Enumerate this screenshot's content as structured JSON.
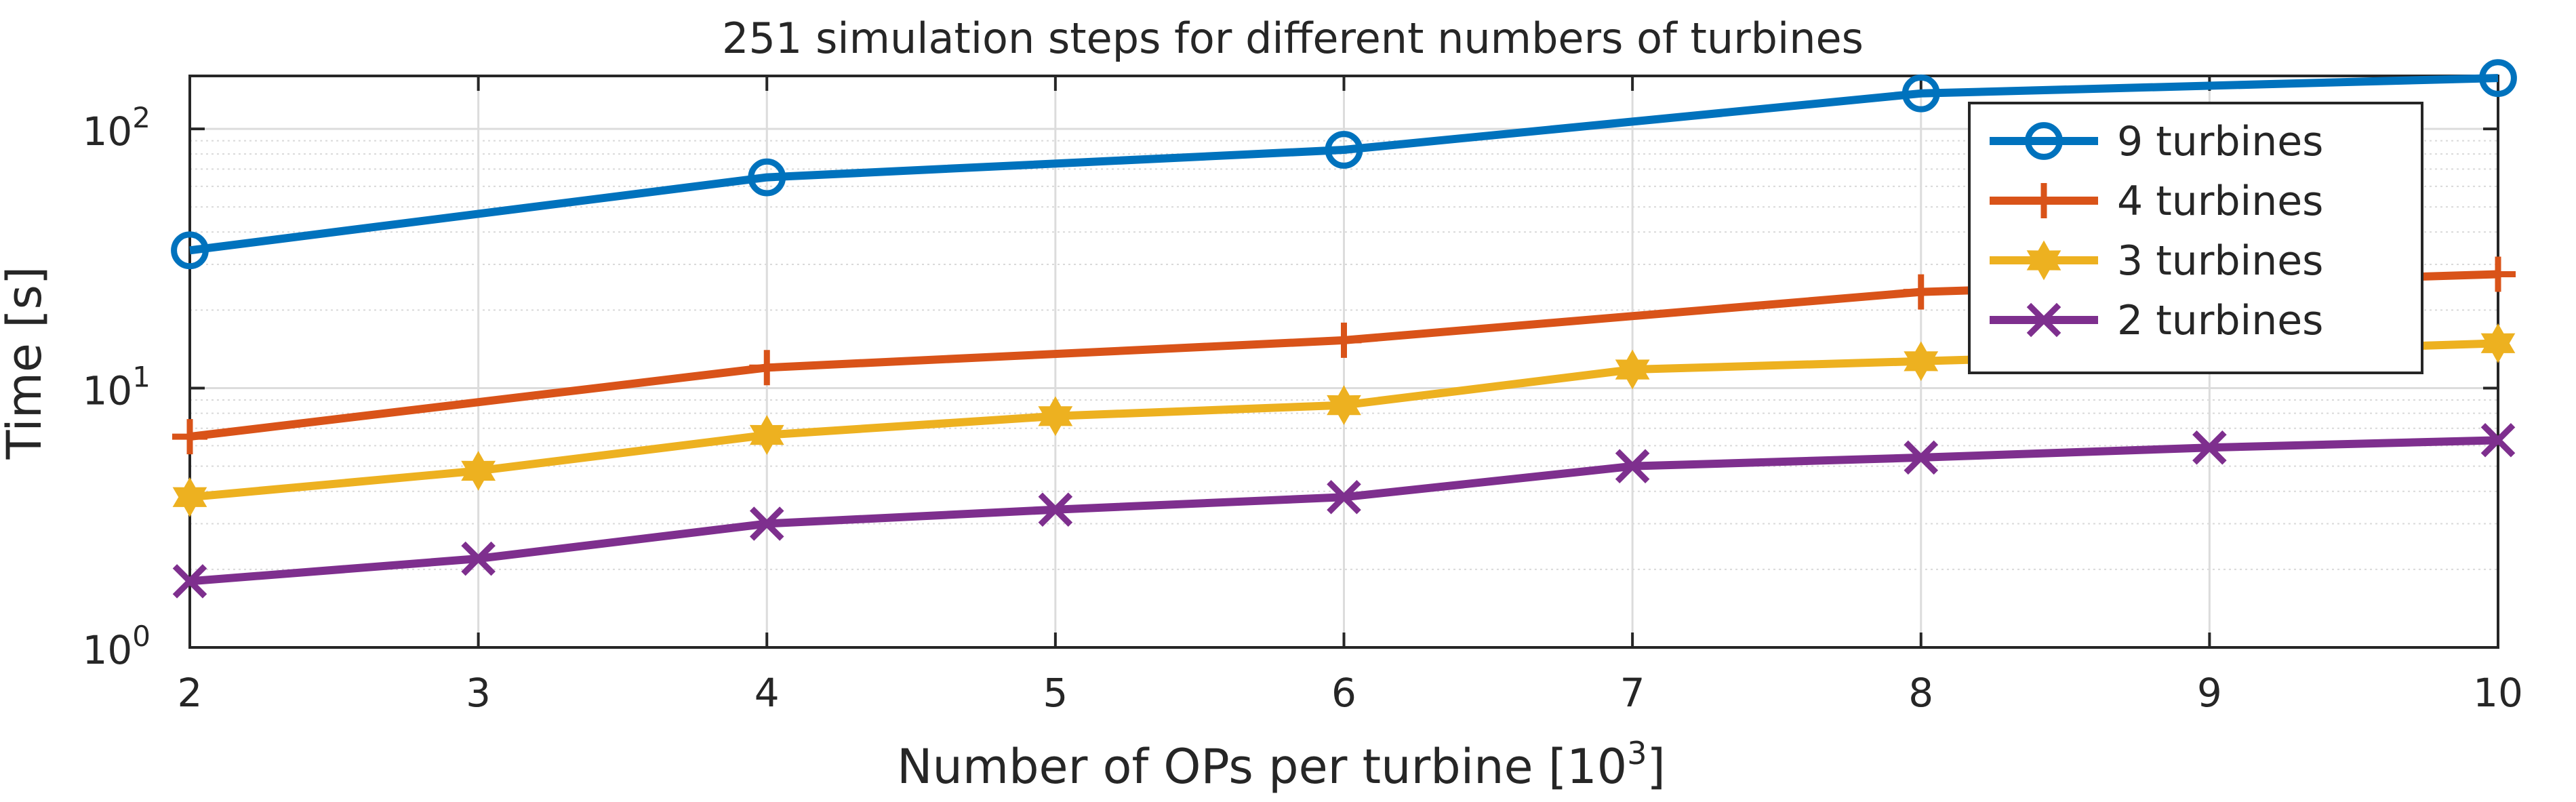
{
  "chart_data": {
    "type": "line",
    "title": "251 simulation steps for different numbers of turbines",
    "xlabel": "Number of OPs per turbine [10",
    "xlabel_superscript": "3",
    "xlabel_suffix": "]",
    "ylabel": "Time [s]",
    "xlim": [
      2,
      10
    ],
    "ylim": [
      1,
      160
    ],
    "yscale": "log",
    "grid": true,
    "legend_position": "top-right",
    "x_ticks": [
      "2",
      "3",
      "4",
      "5",
      "6",
      "7",
      "8",
      "9",
      "10"
    ],
    "y_ticks": [
      {
        "value": 1,
        "base": "10",
        "exp": "0"
      },
      {
        "value": 10,
        "base": "10",
        "exp": "1"
      },
      {
        "value": 100,
        "base": "10",
        "exp": "2"
      }
    ],
    "x": [
      2,
      4,
      6,
      8,
      10
    ],
    "series": [
      {
        "name": "9 turbines",
        "color": "#0072BD",
        "marker": "circle",
        "values": [
          34,
          65,
          83,
          137,
          157
        ]
      },
      {
        "name": "4 turbines",
        "color": "#D95319",
        "marker": "plus",
        "values": [
          6.5,
          12,
          15.3,
          23.5,
          27.5
        ]
      },
      {
        "name": "3 turbines",
        "color": "#EDB120",
        "marker": "hexagram",
        "values": [
          3.8,
          6.6,
          8.6,
          12.7,
          14.9
        ]
      },
      {
        "name": "2 turbines",
        "color": "#7E2F8E",
        "marker": "x",
        "values": [
          1.8,
          3.0,
          3.8,
          5.4,
          6.3
        ]
      }
    ],
    "extra_points": [
      {
        "series": "3 turbines",
        "x": [
          3,
          5,
          7,
          9
        ],
        "values": [
          4.8,
          7.8,
          11.8,
          13.7
        ]
      },
      {
        "series": "2 turbines",
        "x": [
          3,
          5,
          7,
          9
        ],
        "values": [
          2.2,
          3.4,
          5.0,
          5.9
        ]
      }
    ]
  }
}
